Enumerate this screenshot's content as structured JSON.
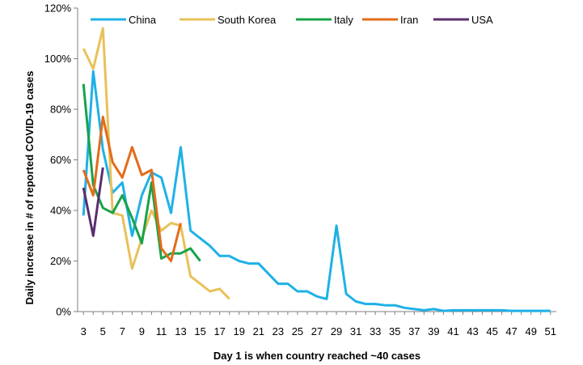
{
  "chart_data": {
    "type": "line",
    "title": "",
    "xlabel": "Day 1 is when country reached ~40 cases",
    "ylabel": "Daily increase in # of reported COVID-19 cases",
    "xlim": [
      2.4,
      51.6
    ],
    "ylim": [
      0,
      120
    ],
    "y_ticks": [
      "0%",
      "20%",
      "40%",
      "60%",
      "80%",
      "100%",
      "120%"
    ],
    "x_ticks": [
      "3",
      "5",
      "7",
      "9",
      "11",
      "13",
      "15",
      "17",
      "19",
      "21",
      "23",
      "25",
      "27",
      "29",
      "31",
      "33",
      "35",
      "37",
      "39",
      "41",
      "43",
      "45",
      "47",
      "49",
      "51"
    ],
    "legend_placement": "top",
    "grid": false,
    "series": [
      {
        "name": "China",
        "color": "#1fb1e6",
        "x": [
          3,
          4,
          5,
          6,
          7,
          8,
          9,
          10,
          11,
          12,
          13,
          14,
          15,
          16,
          17,
          18,
          19,
          20,
          21,
          22,
          23,
          24,
          25,
          26,
          27,
          28,
          29,
          30,
          31,
          32,
          33,
          34,
          35,
          36,
          37,
          38,
          39,
          40,
          41,
          42,
          43,
          44,
          45,
          46,
          47,
          48,
          49,
          50,
          51
        ],
        "values": [
          38,
          95,
          64,
          47,
          51,
          30,
          46,
          55,
          53,
          39,
          65,
          32,
          29,
          26,
          22,
          22,
          20,
          19,
          19,
          15,
          11,
          11,
          8,
          8,
          6,
          5,
          34,
          7,
          4,
          3,
          3,
          2.5,
          2.5,
          1.5,
          1,
          0.5,
          1,
          0.3,
          0.5,
          0.5,
          0.5,
          0.5,
          0.5,
          0.5,
          0.3,
          0.3,
          0.3,
          0.3,
          0.3
        ]
      },
      {
        "name": "South Korea",
        "color": "#e8c15a",
        "x": [
          3,
          4,
          5,
          6,
          7,
          8,
          9,
          10,
          11,
          12,
          13,
          14,
          15,
          16,
          17,
          18
        ],
        "values": [
          104,
          96,
          112,
          39,
          38,
          17,
          29,
          40,
          32,
          35,
          34,
          14,
          11,
          8,
          9,
          5
        ]
      },
      {
        "name": "Italy",
        "color": "#17a34a",
        "x": [
          3,
          4,
          5,
          6,
          7,
          8,
          9,
          10,
          11,
          12,
          13,
          14,
          15
        ],
        "values": [
          90,
          50,
          41,
          39,
          46,
          37,
          27,
          51,
          21,
          23,
          23,
          25,
          20
        ]
      },
      {
        "name": "Iran",
        "color": "#e36c1a",
        "x": [
          3,
          4,
          5,
          6,
          7,
          8,
          9,
          10,
          11,
          12,
          13
        ],
        "values": [
          56,
          46,
          77,
          59,
          53,
          65,
          54,
          56,
          25,
          20,
          35
        ]
      },
      {
        "name": "USA",
        "color": "#5b2d6e",
        "x": [
          3,
          4,
          5
        ],
        "values": [
          49,
          30,
          57
        ]
      }
    ]
  }
}
